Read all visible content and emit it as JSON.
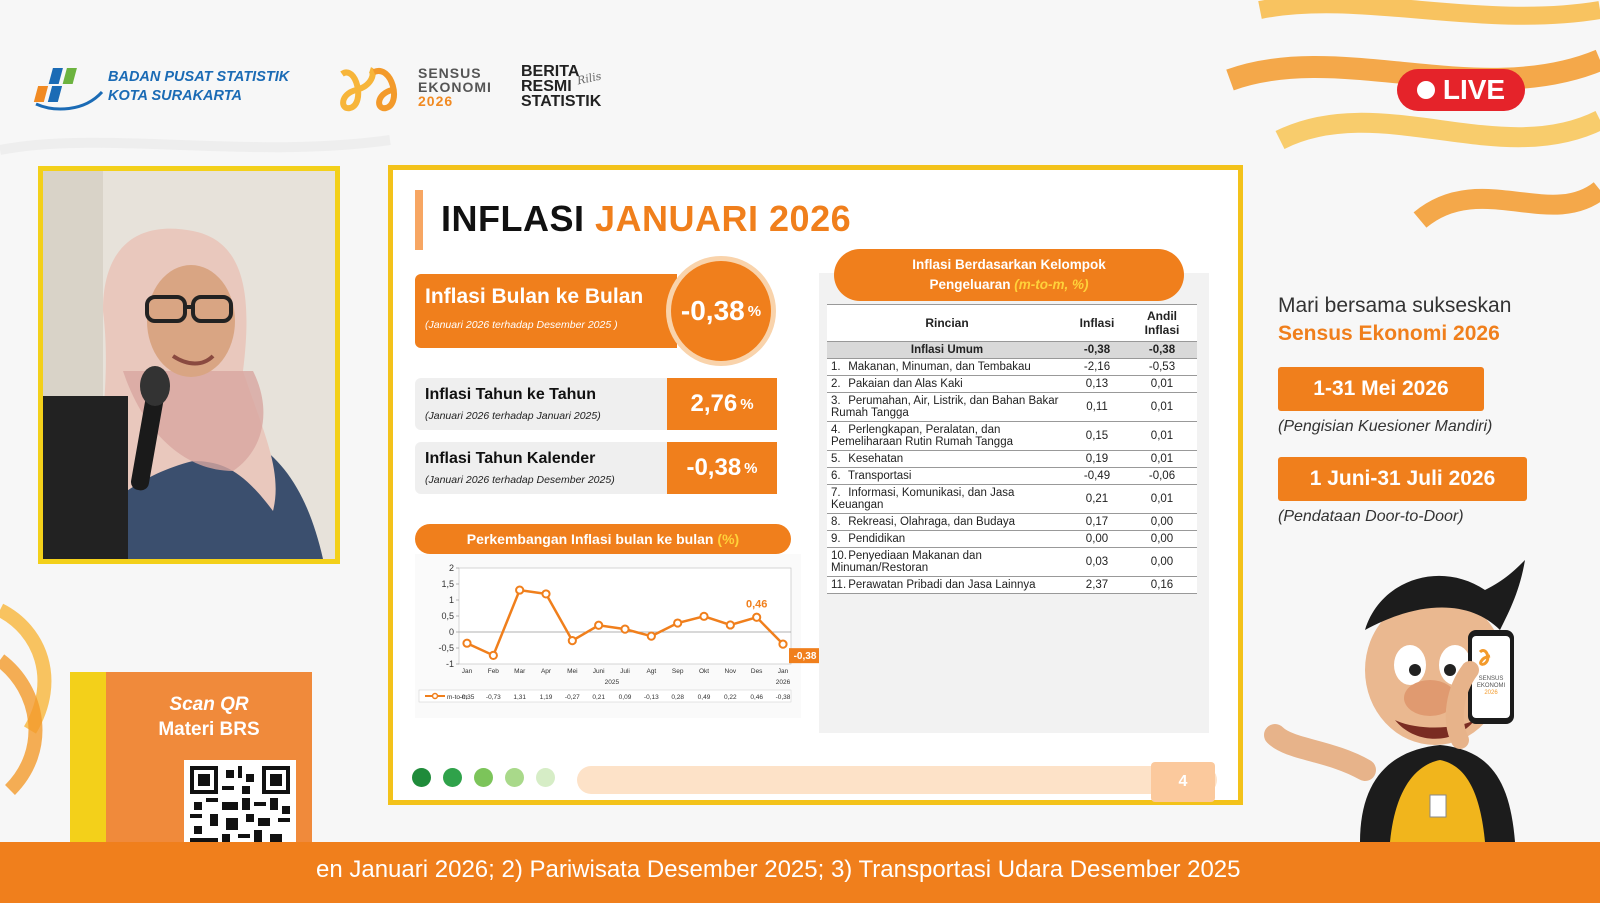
{
  "header": {
    "bps_line1": "BADAN PUSAT STATISTIK",
    "bps_line2": "KOTA SURAKARTA",
    "sensus_line1": "SENSUS",
    "sensus_line2": "EKONOMI",
    "sensus_line3": "2026",
    "brs_line1": "BERITA",
    "brs_line2": "RESMI",
    "brs_line3": "STATISTIK",
    "brs_rilis": "Rilis",
    "live_label": "LIVE"
  },
  "qr_panel": {
    "title_line1": "Scan QR",
    "title_line2": "Materi BRS"
  },
  "slide": {
    "title_main": "INFLASI",
    "title_accent": "JANUARI 2026",
    "mtm": {
      "label": "Inflasi Bulan ke Bulan",
      "sub": "(Januari 2026 terhadap Desember 2025 )",
      "value": "-0,38",
      "unit": "%"
    },
    "yoy": {
      "label": "Inflasi Tahun ke Tahun",
      "sub": "(Januari 2026 terhadap Januari 2025)",
      "value": "2,76",
      "unit": "%"
    },
    "ytd": {
      "label": "Inflasi Tahun Kalender",
      "sub": "(Januari 2026 terhadap Desember 2025)",
      "value": "-0,38",
      "unit": "%"
    },
    "chart_title": "Perkembangan Inflasi bulan ke bulan",
    "chart_title_unit": "(%)",
    "group_title_line1": "Inflasi Berdasarkan Kelompok",
    "group_title_line2": "Pengeluaran",
    "group_title_unit": "(m-to-m, %)",
    "table": {
      "headers": [
        "Rincian",
        "Inflasi",
        "Andil Inflasi"
      ],
      "umum": {
        "label": "Inflasi Umum",
        "inflasi": "-0,38",
        "andil": "-0,38"
      },
      "rows": [
        {
          "no": "1.",
          "label": "Makanan, Minuman, dan Tembakau",
          "inflasi": "-2,16",
          "andil": "-0,53"
        },
        {
          "no": "2.",
          "label": "Pakaian dan Alas Kaki",
          "inflasi": "0,13",
          "andil": "0,01"
        },
        {
          "no": "3.",
          "label": "Perumahan, Air, Listrik, dan Bahan Bakar Rumah Tangga",
          "inflasi": "0,11",
          "andil": "0,01"
        },
        {
          "no": "4.",
          "label": "Perlengkapan, Peralatan, dan Pemeliharaan Rutin Rumah Tangga",
          "inflasi": "0,15",
          "andil": "0,01"
        },
        {
          "no": "5.",
          "label": "Kesehatan",
          "inflasi": "0,19",
          "andil": "0,01"
        },
        {
          "no": "6.",
          "label": "Transportasi",
          "inflasi": "-0,49",
          "andil": "-0,06"
        },
        {
          "no": "7.",
          "label": "Informasi, Komunikasi, dan Jasa Keuangan",
          "inflasi": "0,21",
          "andil": "0,01"
        },
        {
          "no": "8.",
          "label": "Rekreasi, Olahraga, dan Budaya",
          "inflasi": "0,17",
          "andil": "0,00"
        },
        {
          "no": "9.",
          "label": "Pendidikan",
          "inflasi": "0,00",
          "andil": "0,00"
        },
        {
          "no": "10.",
          "label": "Penyediaan Makanan dan Minuman/Restoran",
          "inflasi": "0,03",
          "andil": "0,00"
        },
        {
          "no": "11.",
          "label": "Perawatan Pribadi dan Jasa Lainnya",
          "inflasi": "2,37",
          "andil": "0,16"
        }
      ]
    },
    "page_number": "4"
  },
  "chart_data": {
    "type": "line",
    "categories": [
      "Jan",
      "Feb",
      "Mar",
      "Apr",
      "Mei",
      "Juni",
      "Juli",
      "Agt",
      "Sep",
      "Okt",
      "Nov",
      "Des",
      "Jan"
    ],
    "year_labels": [
      "2025",
      "2026"
    ],
    "series": [
      {
        "name": "m-to-m",
        "values": [
          -0.35,
          -0.73,
          1.31,
          1.19,
          -0.27,
          0.21,
          0.09,
          -0.13,
          0.28,
          0.49,
          0.22,
          0.46,
          -0.38
        ],
        "labels": [
          "-0,35",
          "-0,73",
          "1,31",
          "1,19",
          "-0,27",
          "0,21",
          "0,09",
          "-0,13",
          "0,28",
          "0,49",
          "0,22",
          "0,46",
          "-0,38"
        ]
      }
    ],
    "yticks": [
      "2",
      "1,5",
      "1",
      "0,5",
      "0",
      "-0,5",
      "-1"
    ],
    "ylim": [
      -1,
      2
    ],
    "annotations": [
      {
        "index": 11,
        "text": "0,46"
      },
      {
        "index": 12,
        "text": "-0,38"
      }
    ],
    "color": "#f07f1c"
  },
  "promo": {
    "line1": "Mari bersama sukseskan",
    "line2": "Sensus Ekonomi 2026",
    "date1": "1-31 Mei 2026",
    "date1_sub": "(Pengisian Kuesioner Mandiri)",
    "date2": "1 Juni-31 Juli 2026",
    "date2_sub": "(Pendataan Door-to-Door)",
    "phone_line1": "SENSUS",
    "phone_line2": "EKONOMI",
    "phone_line3": "2026"
  },
  "ticker": {
    "text": "en Januari 2026; 2) Pariwisata Desember 2025; 3) Transportasi Udara Desember 2025"
  }
}
